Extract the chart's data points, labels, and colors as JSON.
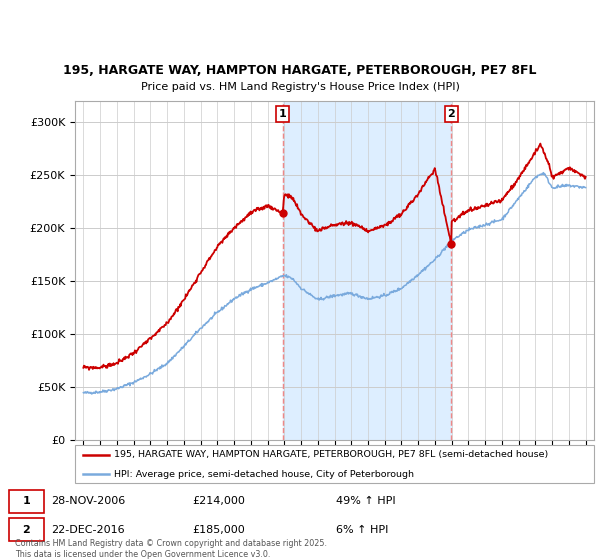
{
  "title1": "195, HARGATE WAY, HAMPTON HARGATE, PETERBOROUGH, PE7 8FL",
  "title2": "Price paid vs. HM Land Registry's House Price Index (HPI)",
  "legend_line1": "195, HARGATE WAY, HAMPTON HARGATE, PETERBOROUGH, PE7 8FL (semi-detached house)",
  "legend_line2": "HPI: Average price, semi-detached house, City of Peterborough",
  "footer": "Contains HM Land Registry data © Crown copyright and database right 2025.\nThis data is licensed under the Open Government Licence v3.0.",
  "annotation1": {
    "label": "1",
    "date_x": 2006.91,
    "price": 214000,
    "text_date": "28-NOV-2006",
    "text_price": "£214,000",
    "text_hpi": "49% ↑ HPI"
  },
  "annotation2": {
    "label": "2",
    "date_x": 2016.97,
    "price": 185000,
    "text_date": "22-DEC-2016",
    "text_price": "£185,000",
    "text_hpi": "6% ↑ HPI"
  },
  "hpi_color": "#7aaadd",
  "price_color": "#cc0000",
  "vline_color": "#ee8888",
  "shade_color": "#ddeeff",
  "annotation_border_color": "#cc0000",
  "background_color": "#ffffff",
  "ylim": [
    0,
    320000
  ],
  "xlim": [
    1994.5,
    2025.5
  ],
  "yticks": [
    0,
    50000,
    100000,
    150000,
    200000,
    250000,
    300000
  ],
  "ytick_labels": [
    "£0",
    "£50K",
    "£100K",
    "£150K",
    "£200K",
    "£250K",
    "£300K"
  ],
  "xticks": [
    1995,
    1996,
    1997,
    1998,
    1999,
    2000,
    2001,
    2002,
    2003,
    2004,
    2005,
    2006,
    2007,
    2008,
    2009,
    2010,
    2011,
    2012,
    2013,
    2014,
    2015,
    2016,
    2017,
    2018,
    2019,
    2020,
    2021,
    2022,
    2023,
    2024,
    2025
  ]
}
